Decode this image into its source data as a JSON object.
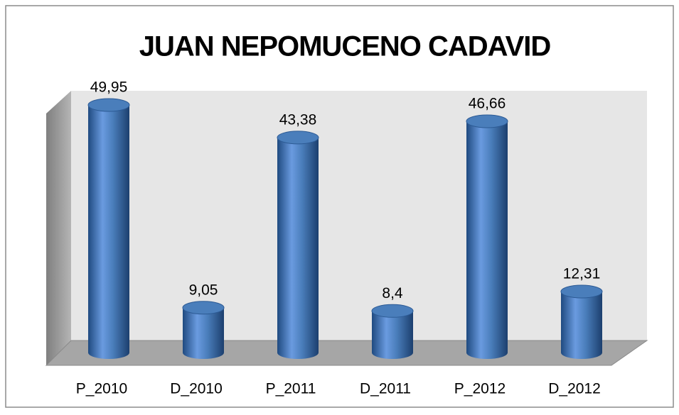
{
  "chart_data": {
    "type": "bar",
    "title": "JUAN NEPOMUCENO CADAVID",
    "categories": [
      "P_2010",
      "D_2010",
      "P_2011",
      "D_2011",
      "P_2012",
      "D_2012"
    ],
    "values": [
      49.95,
      9.05,
      43.38,
      8.4,
      46.66,
      12.31
    ],
    "value_labels": [
      "49,95",
      "9,05",
      "43,38",
      "8,4",
      "46,66",
      "12,31"
    ],
    "color": "#4a7ebb"
  }
}
